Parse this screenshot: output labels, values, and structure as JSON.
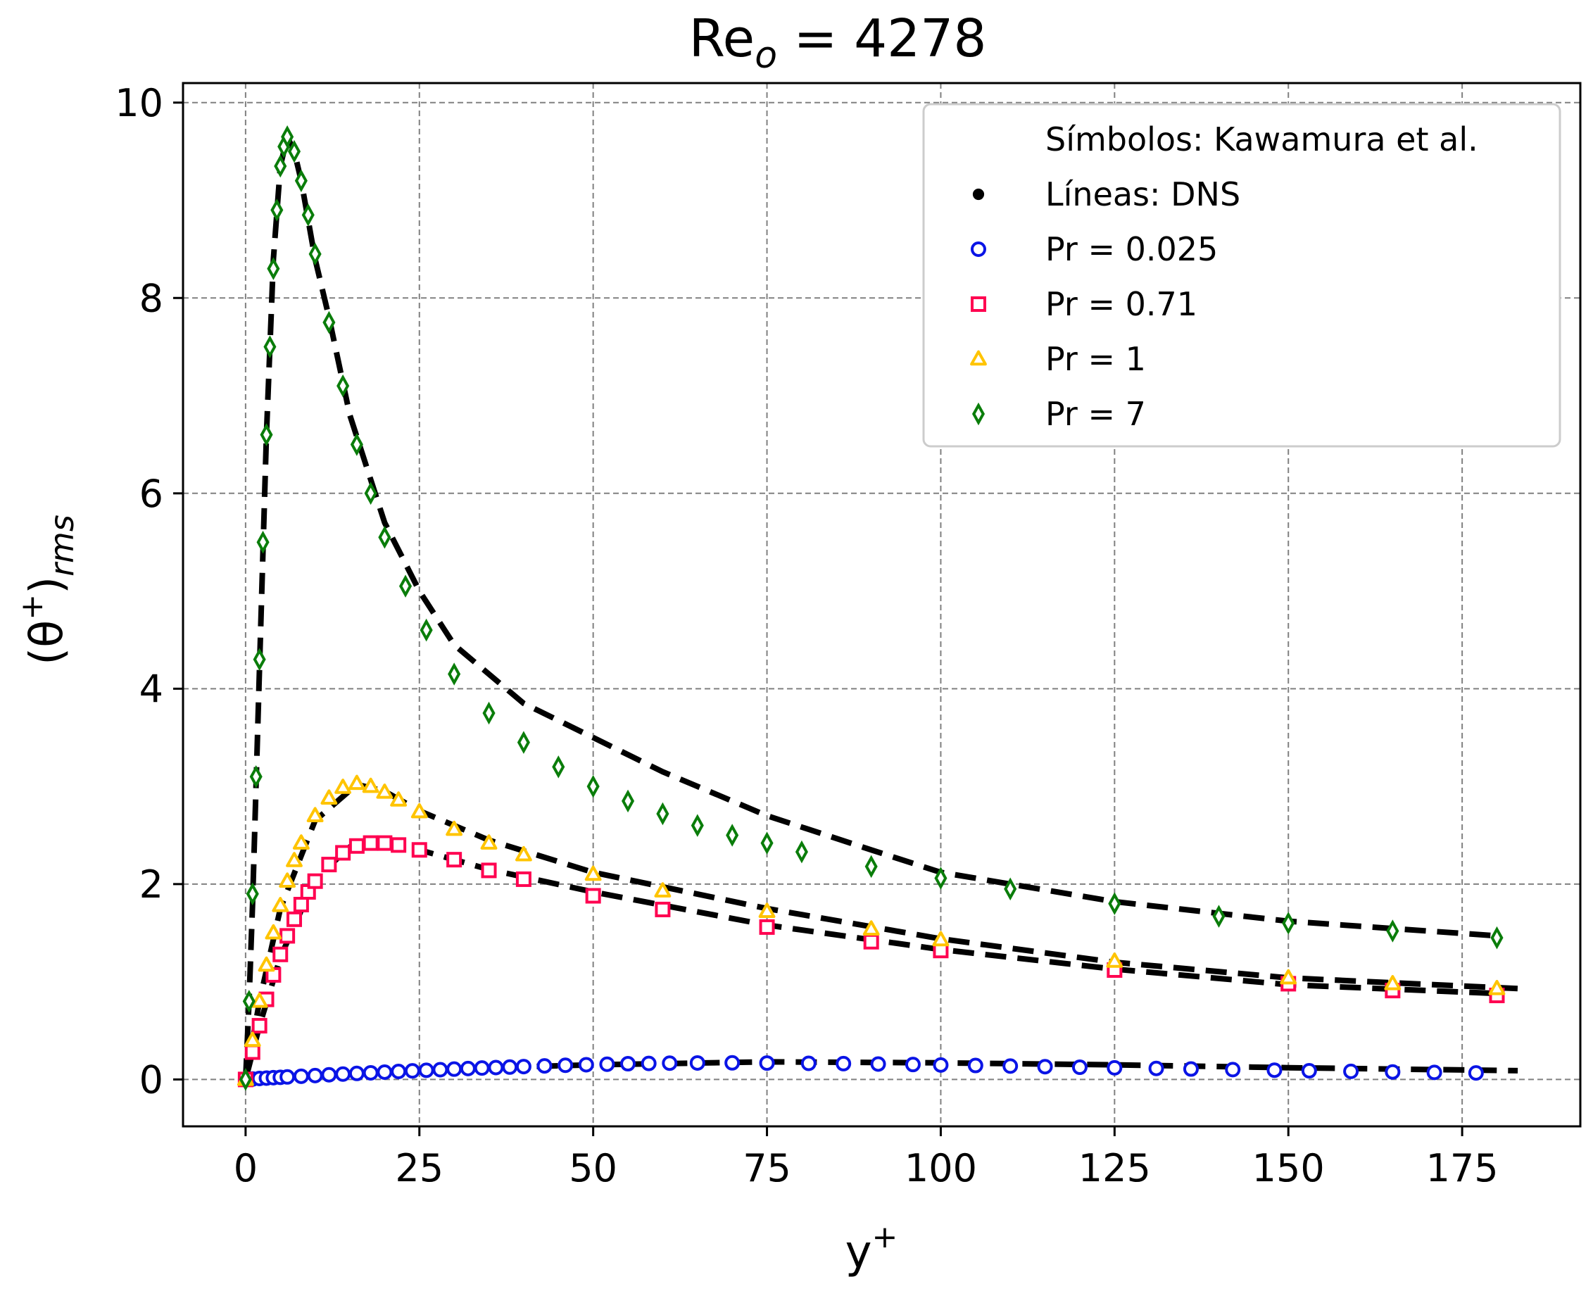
{
  "chart_data": {
    "type": "scatter",
    "title": "Re",
    "title_sub": "o",
    "title_rest": " = 4278",
    "xlabel": "y",
    "xlabel_sup": "+",
    "ylabel_open": "(θ",
    "ylabel_sup": "+",
    "ylabel_close": ")",
    "ylabel_sub": "rms",
    "xlim": [
      -9,
      192
    ],
    "ylim": [
      -0.48,
      10.2
    ],
    "xticks": [
      0,
      25,
      50,
      75,
      100,
      125,
      150,
      175
    ],
    "yticks": [
      0,
      2,
      4,
      6,
      8,
      10
    ],
    "grid": true,
    "legend_position": "top-right",
    "legend": [
      {
        "label": "Símbolos: Kawamura et al.",
        "marker": "none",
        "color": "#000000"
      },
      {
        "label": "Líneas: DNS",
        "marker": "dot",
        "color": "#000000"
      },
      {
        "label": "Pr = 0.025",
        "marker": "circle",
        "color": "#0a14e6"
      },
      {
        "label": "Pr = 0.71",
        "marker": "square",
        "color": "#ff0050"
      },
      {
        "label": "Pr = 1",
        "marker": "triangle",
        "color": "#ffc400"
      },
      {
        "label": "Pr = 7",
        "marker": "diamond",
        "color": "#0a7d0a"
      }
    ],
    "dns_lines": [
      {
        "name": "Pr = 0.025 (DNS)",
        "color": "#000000",
        "x": [
          0,
          10,
          25,
          50,
          75,
          100,
          125,
          150,
          183
        ],
        "y": [
          0,
          0.04,
          0.1,
          0.15,
          0.18,
          0.17,
          0.15,
          0.12,
          0.09
        ]
      },
      {
        "name": "Pr = 0.71 (DNS)",
        "color": "#000000",
        "x": [
          0,
          2,
          5,
          10,
          15,
          19,
          25,
          35,
          50,
          75,
          100,
          125,
          150,
          180
        ],
        "y": [
          0,
          0.55,
          1.25,
          2.05,
          2.38,
          2.43,
          2.35,
          2.15,
          1.92,
          1.58,
          1.33,
          1.13,
          0.97,
          0.88
        ]
      },
      {
        "name": "Pr = 1 (DNS)",
        "color": "#000000",
        "x": [
          0,
          2,
          5,
          10,
          16,
          20,
          25,
          35,
          50,
          75,
          100,
          125,
          150,
          183
        ],
        "y": [
          0,
          0.8,
          1.75,
          2.65,
          3.02,
          2.95,
          2.75,
          2.45,
          2.12,
          1.75,
          1.44,
          1.2,
          1.04,
          0.93
        ]
      },
      {
        "name": "Pr = 7 (DNS)",
        "color": "#000000",
        "x": [
          0,
          0.5,
          1,
          2,
          3,
          4,
          5,
          6,
          7,
          8,
          10,
          12,
          15,
          20,
          25,
          30,
          40,
          50,
          60,
          75,
          90,
          100,
          125,
          150,
          180
        ],
        "y": [
          0,
          0.8,
          1.8,
          4.2,
          6.6,
          8.4,
          9.35,
          9.65,
          9.5,
          9.2,
          8.4,
          7.8,
          6.8,
          5.7,
          5.0,
          4.45,
          3.85,
          3.5,
          3.15,
          2.7,
          2.35,
          2.12,
          1.82,
          1.62,
          1.47
        ]
      }
    ],
    "series": [
      {
        "name": "Pr = 0.025",
        "marker": "circle",
        "color": "#0a14e6",
        "x": [
          0,
          1,
          2,
          3,
          4,
          5,
          6,
          8,
          10,
          12,
          14,
          16,
          18,
          20,
          22,
          24,
          26,
          28,
          30,
          32,
          34,
          36,
          38,
          40,
          43,
          46,
          49,
          52,
          55,
          58,
          61,
          65,
          70,
          75,
          81,
          86,
          91,
          96,
          100,
          105,
          110,
          115,
          120,
          125,
          131,
          136,
          142,
          148,
          153,
          159,
          165,
          171,
          177
        ],
        "y": [
          0,
          0.005,
          0.01,
          0.014,
          0.018,
          0.022,
          0.026,
          0.033,
          0.04,
          0.048,
          0.055,
          0.062,
          0.068,
          0.075,
          0.082,
          0.088,
          0.094,
          0.1,
          0.106,
          0.112,
          0.117,
          0.122,
          0.127,
          0.132,
          0.139,
          0.145,
          0.151,
          0.156,
          0.161,
          0.164,
          0.167,
          0.169,
          0.17,
          0.168,
          0.165,
          0.162,
          0.158,
          0.153,
          0.148,
          0.143,
          0.137,
          0.131,
          0.125,
          0.119,
          0.113,
          0.107,
          0.101,
          0.095,
          0.089,
          0.083,
          0.077,
          0.072,
          0.067
        ]
      },
      {
        "name": "Pr = 0.71",
        "marker": "square",
        "color": "#ff0050",
        "x": [
          0,
          1,
          2,
          3,
          4,
          5,
          6,
          7,
          8,
          9,
          10,
          12,
          14,
          16,
          18,
          20,
          22,
          25,
          30,
          35,
          40,
          50,
          60,
          75,
          90,
          100,
          125,
          150,
          165,
          180
        ],
        "y": [
          0,
          0.28,
          0.55,
          0.82,
          1.07,
          1.28,
          1.47,
          1.64,
          1.79,
          1.92,
          2.03,
          2.2,
          2.32,
          2.39,
          2.42,
          2.42,
          2.4,
          2.35,
          2.25,
          2.14,
          2.05,
          1.88,
          1.74,
          1.56,
          1.41,
          1.32,
          1.12,
          0.98,
          0.91,
          0.86
        ]
      },
      {
        "name": "Pr = 1",
        "marker": "triangle",
        "color": "#ffc400",
        "x": [
          0,
          1,
          2,
          3,
          4,
          5,
          6,
          7,
          8,
          10,
          12,
          14,
          16,
          18,
          20,
          22,
          25,
          30,
          35,
          40,
          50,
          60,
          75,
          90,
          100,
          125,
          150,
          165,
          180
        ],
        "y": [
          0,
          0.4,
          0.8,
          1.17,
          1.5,
          1.78,
          2.03,
          2.24,
          2.42,
          2.7,
          2.88,
          2.99,
          3.03,
          3.0,
          2.94,
          2.86,
          2.74,
          2.56,
          2.42,
          2.3,
          2.1,
          1.93,
          1.72,
          1.54,
          1.43,
          1.21,
          1.04,
          0.98,
          0.93
        ]
      },
      {
        "name": "Pr = 7",
        "marker": "diamond",
        "color": "#0a7d0a",
        "x": [
          0,
          0.5,
          1,
          1.5,
          2,
          2.5,
          3,
          3.5,
          4,
          4.5,
          5,
          5.5,
          6,
          7,
          8,
          9,
          10,
          12,
          14,
          16,
          18,
          20,
          23,
          26,
          30,
          35,
          40,
          45,
          50,
          55,
          60,
          65,
          70,
          75,
          80,
          90,
          100,
          110,
          125,
          140,
          150,
          165,
          180
        ],
        "y": [
          0,
          0.8,
          1.9,
          3.1,
          4.3,
          5.5,
          6.6,
          7.5,
          8.3,
          8.9,
          9.35,
          9.55,
          9.65,
          9.5,
          9.2,
          8.85,
          8.45,
          7.75,
          7.1,
          6.5,
          6.0,
          5.55,
          5.05,
          4.6,
          4.15,
          3.75,
          3.45,
          3.2,
          3.0,
          2.85,
          2.72,
          2.6,
          2.5,
          2.42,
          2.33,
          2.18,
          2.06,
          1.95,
          1.8,
          1.67,
          1.6,
          1.52,
          1.45
        ]
      }
    ]
  }
}
